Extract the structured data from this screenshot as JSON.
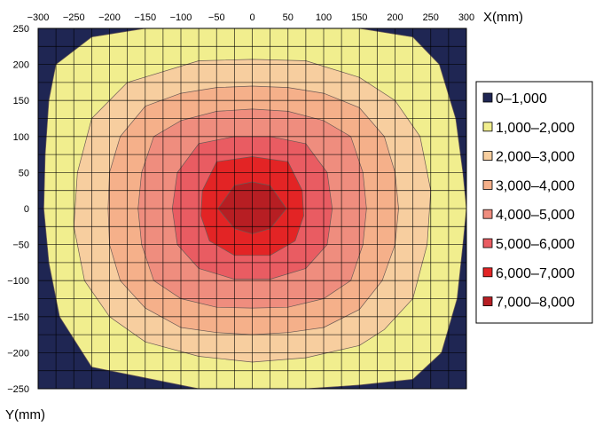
{
  "chart_data": {
    "type": "contour",
    "xlabel": "X(mm)",
    "ylabel": "Y(mm)",
    "xlim": [
      -300,
      300
    ],
    "ylim": [
      -250,
      250
    ],
    "x_ticks": [
      -300,
      -250,
      -200,
      -150,
      -100,
      -50,
      0,
      50,
      100,
      150,
      200,
      250,
      300
    ],
    "y_ticks": [
      250,
      200,
      150,
      100,
      50,
      0,
      -50,
      -100,
      -150,
      -200,
      -250
    ],
    "x_tick_labels": [
      "−300",
      "−250",
      "−200",
      "−150",
      "−100",
      "−50",
      "0",
      "50",
      "100",
      "150",
      "200",
      "250",
      "300"
    ],
    "y_tick_labels": [
      "250",
      "200",
      "150",
      "100",
      "50",
      "0",
      "−50",
      "−100",
      "−150",
      "−200",
      "−250"
    ],
    "grid": true,
    "grid_step": 25,
    "legend_position": "right",
    "levels": [
      {
        "label": "0–1,000",
        "color": "#1f2653"
      },
      {
        "label": "1,000–2,000",
        "color": "#f1ee8e"
      },
      {
        "label": "2,000–3,000",
        "color": "#f7ce9f"
      },
      {
        "label": "3,000–4,000",
        "color": "#f5b08a"
      },
      {
        "label": "4,000–5,000",
        "color": "#ef8d7e"
      },
      {
        "label": "5,000–6,000",
        "color": "#e95c62"
      },
      {
        "label": "6,000–7,000",
        "color": "#e32425"
      },
      {
        "label": "7,000–8,000",
        "color": "#b71e23"
      }
    ],
    "contours": [
      {
        "level_index": 1,
        "points": [
          [
            -275,
            200
          ],
          [
            -225,
            238
          ],
          [
            -150,
            250
          ],
          [
            -75,
            250
          ],
          [
            0,
            250
          ],
          [
            75,
            250
          ],
          [
            150,
            250
          ],
          [
            225,
            238
          ],
          [
            262,
            200
          ],
          [
            285,
            125
          ],
          [
            295,
            50
          ],
          [
            300,
            0
          ],
          [
            295,
            -50
          ],
          [
            287,
            -125
          ],
          [
            265,
            -200
          ],
          [
            225,
            -237
          ],
          [
            150,
            -245
          ],
          [
            75,
            -250
          ],
          [
            0,
            -250
          ],
          [
            -75,
            -250
          ],
          [
            -125,
            -240
          ],
          [
            -225,
            -220
          ],
          [
            -270,
            -150
          ],
          [
            -285,
            -75
          ],
          [
            -292,
            0
          ],
          [
            -290,
            75
          ],
          [
            -285,
            150
          ]
        ]
      },
      {
        "level_index": 2,
        "points": [
          [
            -175,
            175
          ],
          [
            -75,
            205
          ],
          [
            0,
            207
          ],
          [
            75,
            205
          ],
          [
            150,
            182
          ],
          [
            200,
            150
          ],
          [
            235,
            100
          ],
          [
            250,
            25
          ],
          [
            245,
            -50
          ],
          [
            225,
            -125
          ],
          [
            185,
            -168
          ],
          [
            150,
            -190
          ],
          [
            75,
            -207
          ],
          [
            0,
            -213
          ],
          [
            -75,
            -205
          ],
          [
            -150,
            -185
          ],
          [
            -200,
            -150
          ],
          [
            -235,
            -100
          ],
          [
            -250,
            -25
          ],
          [
            -245,
            50
          ],
          [
            -225,
            125
          ]
        ]
      },
      {
        "level_index": 3,
        "points": [
          [
            -150,
            142
          ],
          [
            -100,
            160
          ],
          [
            -50,
            168
          ],
          [
            0,
            170
          ],
          [
            50,
            168
          ],
          [
            100,
            160
          ],
          [
            150,
            140
          ],
          [
            185,
            100
          ],
          [
            200,
            50
          ],
          [
            205,
            0
          ],
          [
            200,
            -50
          ],
          [
            182,
            -100
          ],
          [
            150,
            -140
          ],
          [
            100,
            -165
          ],
          [
            50,
            -172
          ],
          [
            0,
            -175
          ],
          [
            -50,
            -172
          ],
          [
            -100,
            -165
          ],
          [
            -150,
            -138
          ],
          [
            -185,
            -100
          ],
          [
            -200,
            -50
          ],
          [
            -202,
            0
          ],
          [
            -200,
            50
          ],
          [
            -185,
            100
          ]
        ]
      },
      {
        "level_index": 4,
        "points": [
          [
            -100,
            122
          ],
          [
            -50,
            135
          ],
          [
            0,
            138
          ],
          [
            50,
            135
          ],
          [
            100,
            122
          ],
          [
            138,
            100
          ],
          [
            155,
            50
          ],
          [
            160,
            0
          ],
          [
            155,
            -50
          ],
          [
            138,
            -100
          ],
          [
            100,
            -125
          ],
          [
            50,
            -137
          ],
          [
            0,
            -138
          ],
          [
            -50,
            -137
          ],
          [
            -100,
            -125
          ],
          [
            -138,
            -100
          ],
          [
            -155,
            -50
          ],
          [
            -160,
            0
          ],
          [
            -155,
            50
          ],
          [
            -138,
            100
          ]
        ]
      },
      {
        "level_index": 5,
        "points": [
          [
            -75,
            90
          ],
          [
            -25,
            100
          ],
          [
            25,
            100
          ],
          [
            75,
            90
          ],
          [
            105,
            50
          ],
          [
            112,
            0
          ],
          [
            105,
            -50
          ],
          [
            75,
            -83
          ],
          [
            25,
            -98
          ],
          [
            -25,
            -98
          ],
          [
            -75,
            -83
          ],
          [
            -105,
            -50
          ],
          [
            -112,
            0
          ],
          [
            -105,
            50
          ]
        ]
      },
      {
        "level_index": 6,
        "points": [
          [
            -50,
            65
          ],
          [
            0,
            72
          ],
          [
            50,
            65
          ],
          [
            70,
            25
          ],
          [
            72,
            -10
          ],
          [
            60,
            -45
          ],
          [
            25,
            -65
          ],
          [
            -25,
            -65
          ],
          [
            -60,
            -45
          ],
          [
            -72,
            -10
          ],
          [
            -70,
            25
          ]
        ]
      },
      {
        "level_index": 7,
        "points": [
          [
            -25,
            32
          ],
          [
            0,
            37
          ],
          [
            25,
            32
          ],
          [
            48,
            0
          ],
          [
            25,
            -28
          ],
          [
            0,
            -35
          ],
          [
            -25,
            -28
          ],
          [
            -48,
            0
          ]
        ]
      }
    ]
  }
}
